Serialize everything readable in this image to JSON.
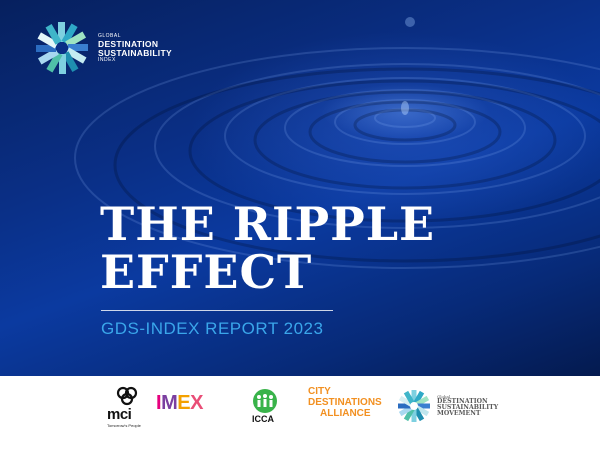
{
  "brand": {
    "line1": "GLOBAL",
    "line2": "DESTINATION",
    "line3": "SUSTAINABILITY",
    "line4": "INDEX",
    "icon": "pinwheel-logo-icon"
  },
  "title": {
    "line1": "THE RIPPLE",
    "line2": "EFFECT"
  },
  "subtitle": "GDS-INDEX REPORT 2023",
  "partners": {
    "mci": {
      "name": "mci",
      "tagline": "Tomorrow's People"
    },
    "imex": {
      "letters": [
        "I",
        "M",
        "E",
        "X"
      ]
    },
    "icca": {
      "name": "ICCA"
    },
    "city_destinations": {
      "line1": "CITY",
      "line2": "DESTINATIONS",
      "line3": "ALLIANCE"
    },
    "gdsm": {
      "line1": "Global",
      "line2": "DESTINATION",
      "line3": "SUSTAINABILITY",
      "line4": "MOVEMENT"
    }
  },
  "colors": {
    "background_dark": "#06205e",
    "background_mid": "#0b3aa0",
    "subtitle": "#3aa6ea",
    "cda_orange": "#f29021"
  }
}
